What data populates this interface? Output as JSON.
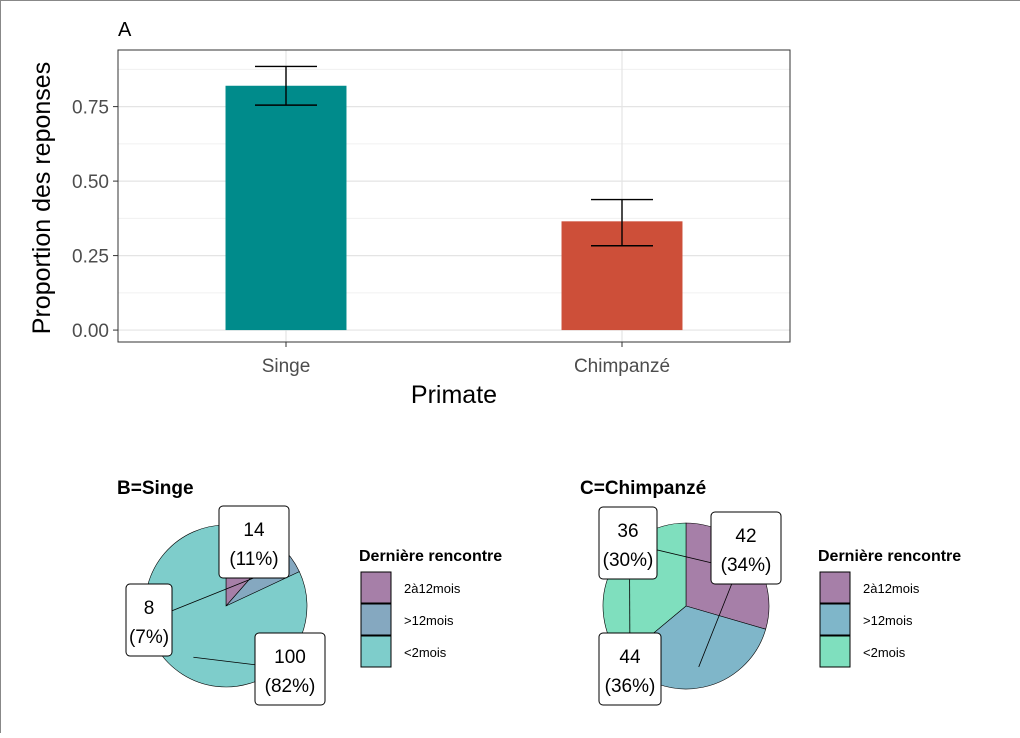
{
  "chart_data": [
    {
      "type": "bar",
      "panel_label": "A",
      "categories": [
        "Singe",
        "Chimpanzé"
      ],
      "values": [
        0.82,
        0.365
      ],
      "error_low": [
        0.755,
        0.283
      ],
      "error_high": [
        0.885,
        0.438
      ],
      "xlabel": "Primate",
      "ylabel": "Proportion des reponses",
      "ylim": [
        -0.04,
        0.94
      ],
      "yticks": [
        0,
        0.25,
        0.5,
        0.75
      ],
      "ytick_labels": [
        "0.00",
        "0.25",
        "0.50",
        "0.75"
      ],
      "colors": [
        "#008B8B",
        "#CD4F39"
      ],
      "grid": true
    },
    {
      "type": "pie",
      "title": "B=Singe",
      "legend_title": "Dernière rencontre",
      "legend_position": "right",
      "slices": [
        {
          "category": "2à12mois",
          "value": 14,
          "label_count": "14",
          "label_pct": "(11%)",
          "color": "#A67FA8"
        },
        {
          "category": ">12mois",
          "value": 8,
          "label_count": "8",
          "label_pct": "(7%)",
          "color": "#85A8C0"
        },
        {
          "category": "<2mois",
          "value": 100,
          "label_count": "100",
          "label_pct": "(82%)",
          "color": "#7ECDCB"
        }
      ]
    },
    {
      "type": "pie",
      "title": "C=Chimpanzé",
      "legend_title": "Dernière rencontre",
      "legend_position": "right",
      "slices": [
        {
          "category": "2à12mois",
          "value": 36,
          "label_count": "36",
          "label_pct": "(30%)",
          "color": "#A67FA8"
        },
        {
          "category": ">12mois",
          "value": 42,
          "label_count": "42",
          "label_pct": "(34%)",
          "color": "#7FB6C9"
        },
        {
          "category": "<2mois",
          "value": 44,
          "label_count": "44",
          "label_pct": "(36%)",
          "color": "#7FDFBE"
        }
      ]
    }
  ]
}
